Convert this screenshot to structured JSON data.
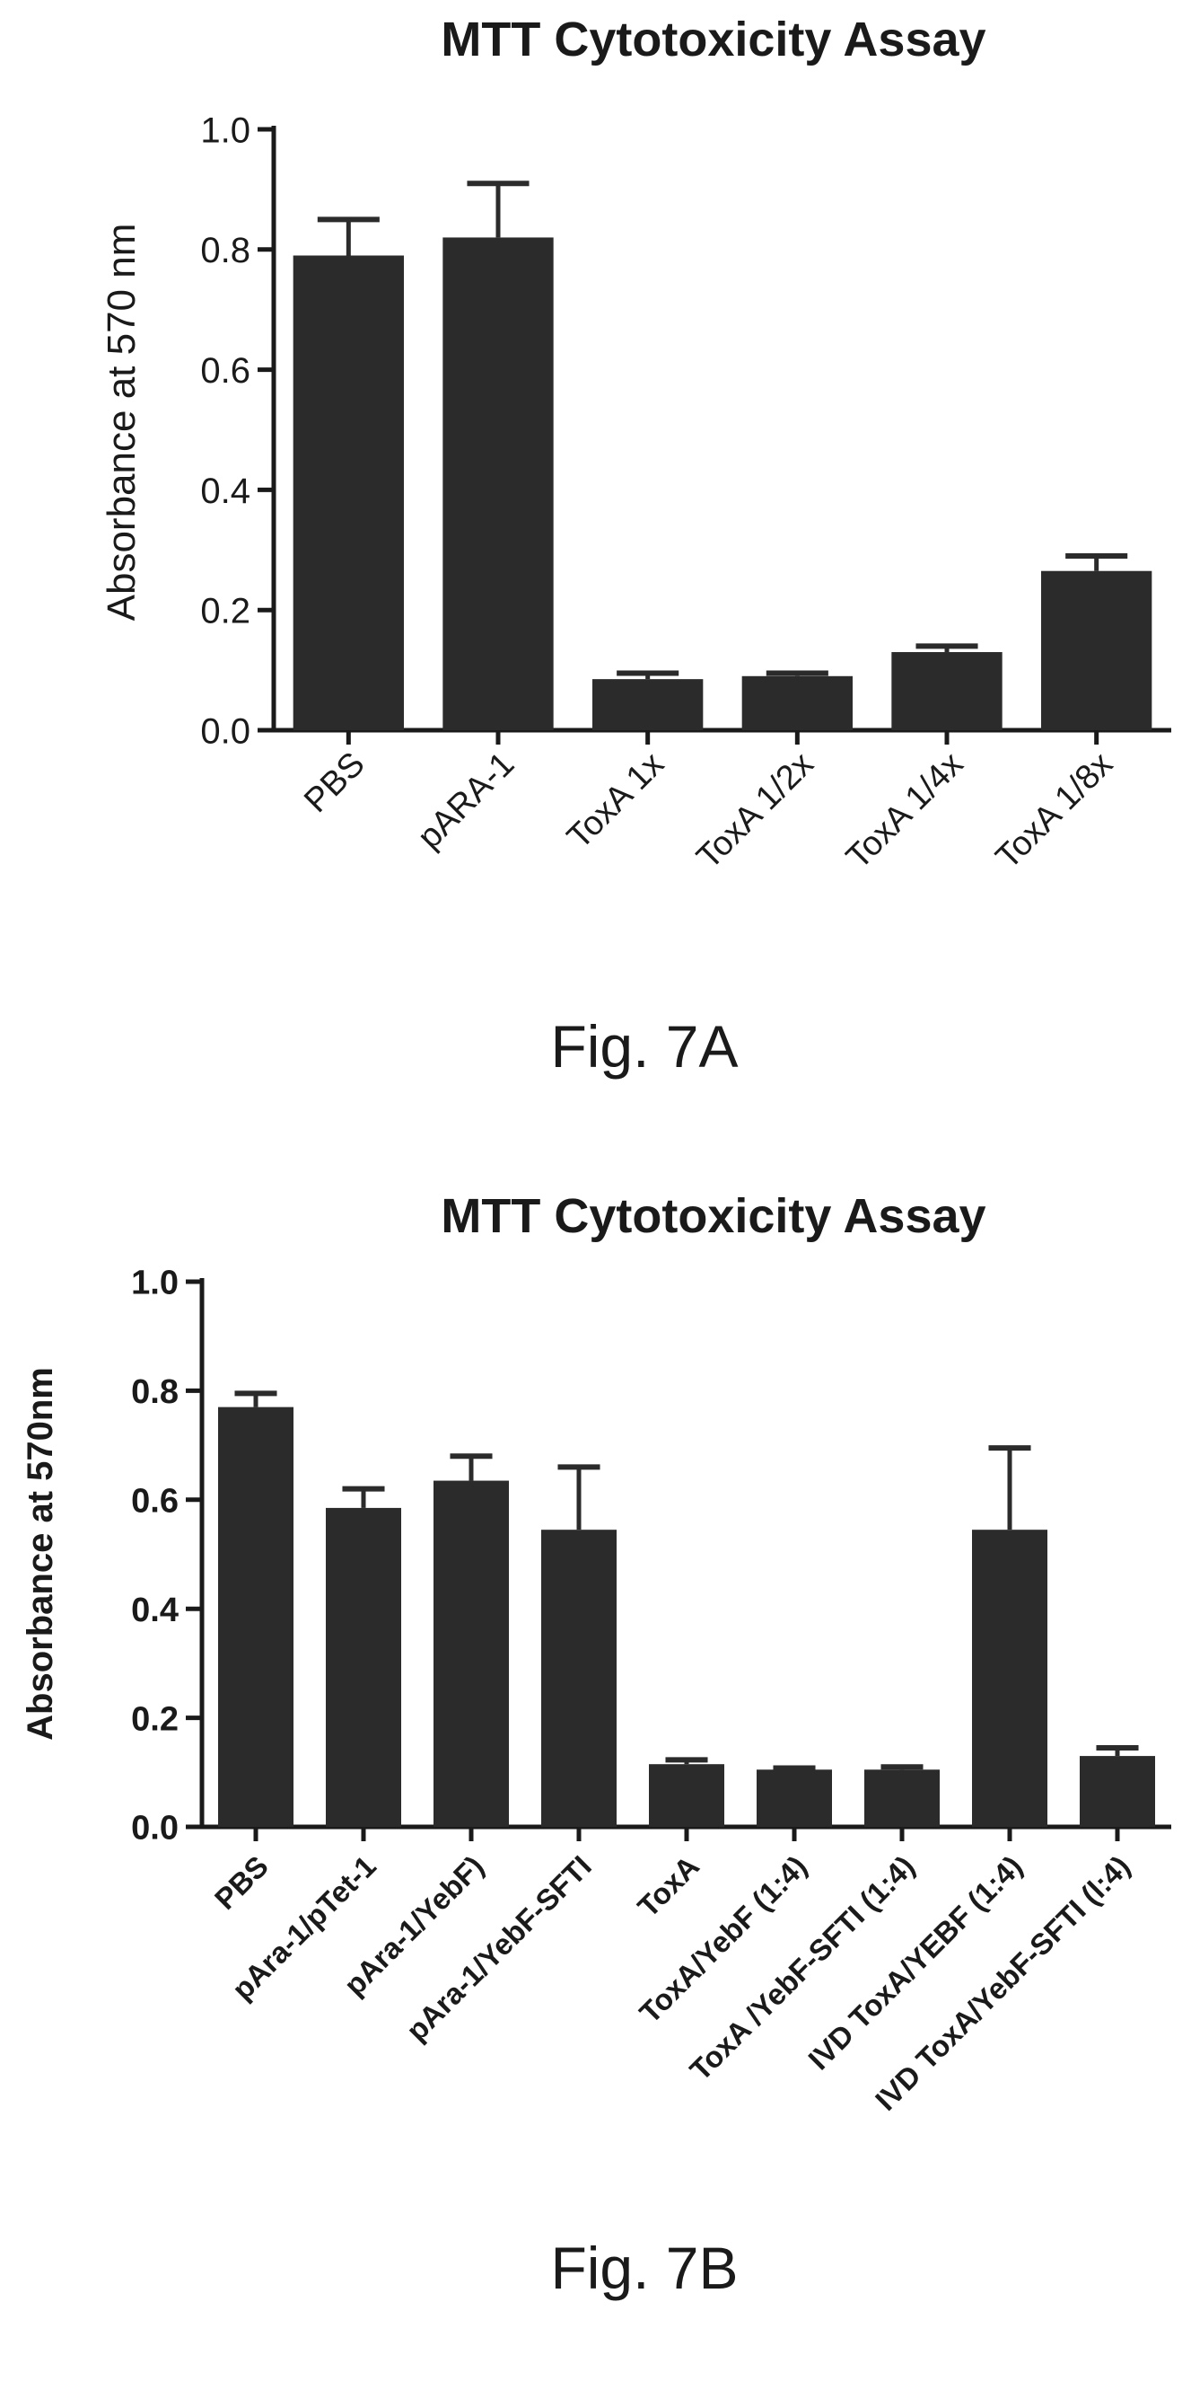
{
  "colors": {
    "bar": "#2b2b2b",
    "axis": "#1a1a1a"
  },
  "chart_data": [
    {
      "type": "bar",
      "title": "MTT Cytotoxicity Assay",
      "ylabel": "Absorbance at 570 nm",
      "ylim": [
        0,
        1.0
      ],
      "yticks": [
        "0.0",
        "0.2",
        "0.4",
        "0.6",
        "0.8",
        "1.0"
      ],
      "categories": [
        "PBS",
        "pARA-1",
        "ToxA 1x",
        "ToxA 1/2x",
        "ToxA 1/4x",
        "ToxA 1/8x"
      ],
      "values": [
        0.79,
        0.82,
        0.085,
        0.09,
        0.13,
        0.265
      ],
      "errors": [
        0.06,
        0.09,
        0.01,
        0.005,
        0.01,
        0.025
      ],
      "figure_label": "Fig. 7A"
    },
    {
      "type": "bar",
      "title": "MTT Cytotoxicity Assay",
      "ylabel": "Absorbance at 570nm",
      "ylim": [
        0,
        1.0
      ],
      "yticks": [
        "0.0",
        "0.2",
        "0.4",
        "0.6",
        "0.8",
        "1.0"
      ],
      "categories": [
        "PBS",
        "pAra-1/pTet-1",
        "pAra-1/YebF)",
        "pAra-1/YebF-SFTI",
        "ToxA",
        "ToxA/YebF (1:4)",
        "ToxA /YebF-SFTI (1:4)",
        "IVD ToxA/YEBF (1:4)",
        "IVD ToxA/YebF-SFTI (l:4)"
      ],
      "values": [
        0.77,
        0.585,
        0.635,
        0.545,
        0.115,
        0.105,
        0.105,
        0.545,
        0.13
      ],
      "errors": [
        0.025,
        0.035,
        0.045,
        0.115,
        0.008,
        0.003,
        0.005,
        0.15,
        0.015
      ],
      "figure_label": "Fig. 7B"
    }
  ]
}
